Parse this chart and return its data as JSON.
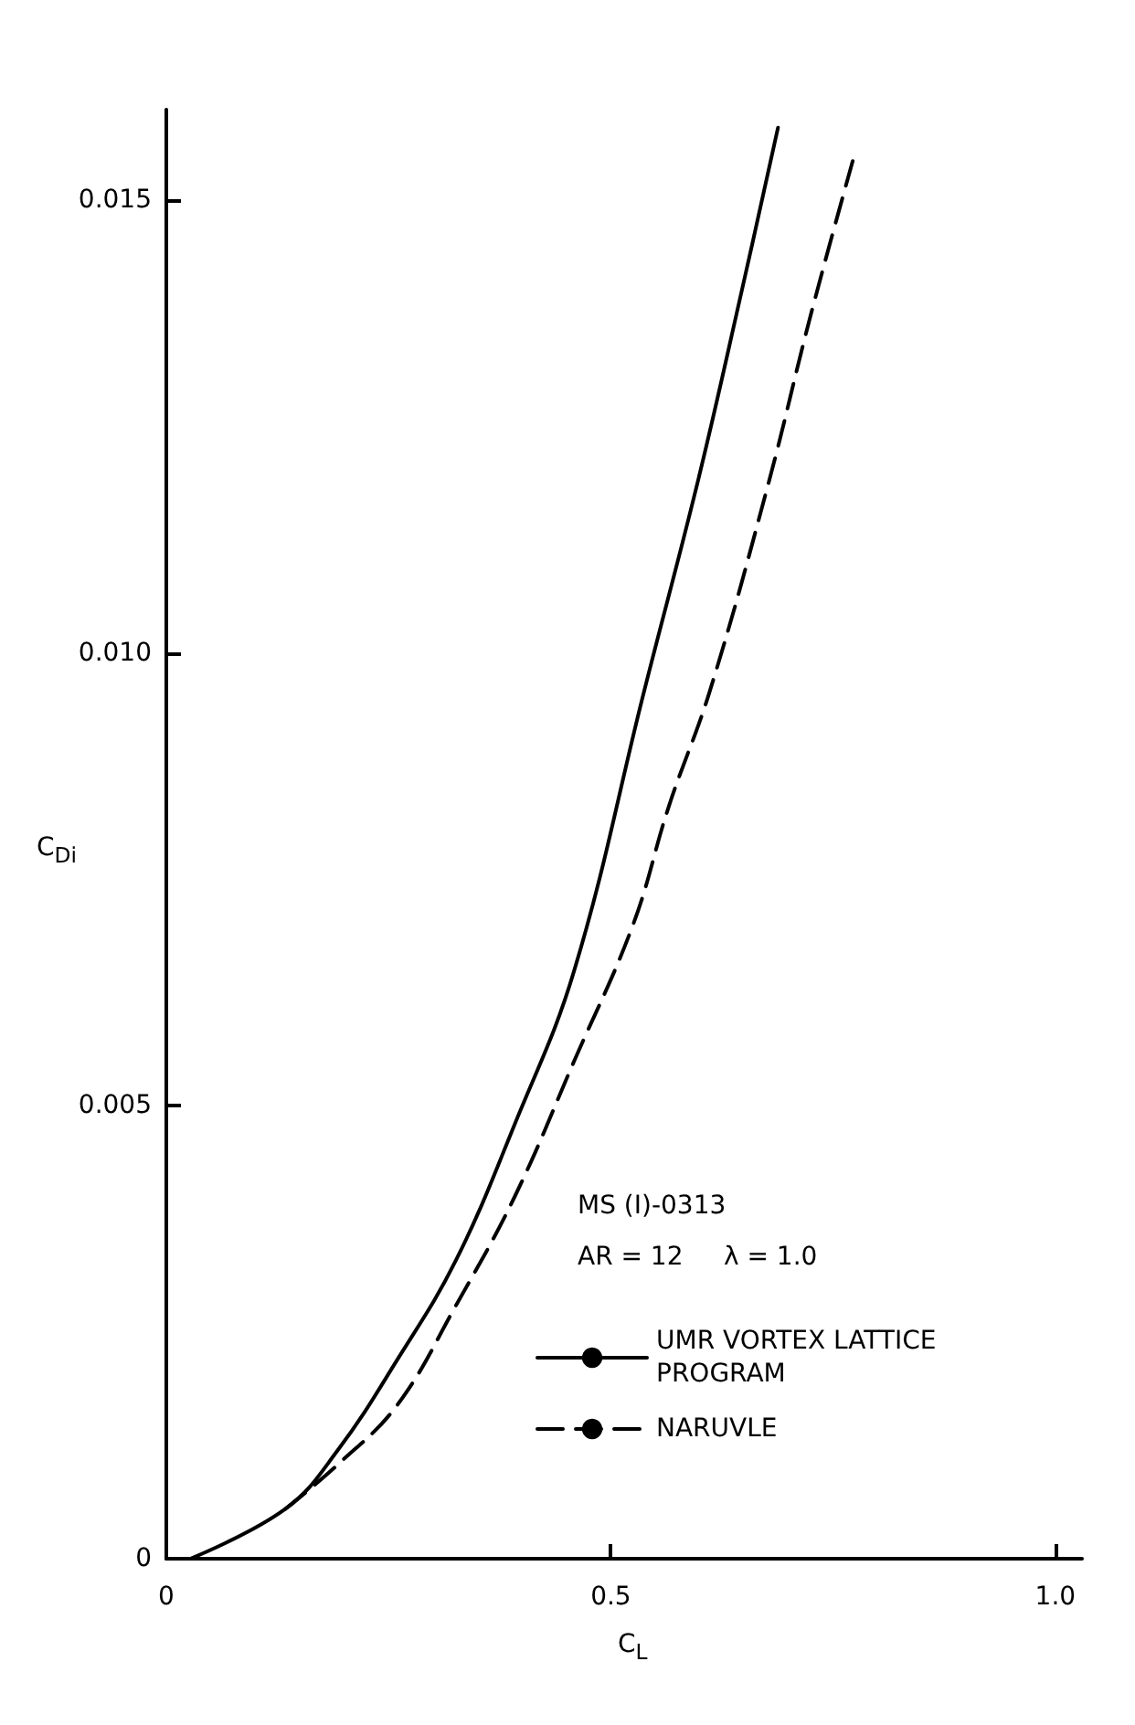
{
  "chart_data": {
    "type": "line",
    "xlabel": "C$_{L}$",
    "ylabel": "C$_{Di}$",
    "annotations": [
      "MS (I)-0313",
      "AR = 12     λ = 1.0"
    ],
    "series": [
      {
        "name": "UMR VORTEX LATTICE PROGRAM",
        "color": "#000000",
        "line_style": "solid",
        "x": [
          0.027,
          0.134,
          0.193,
          0.26,
          0.326,
          0.392,
          0.459,
          0.538,
          0.598,
          0.645,
          0.688
        ],
        "values": [
          0,
          0.00055,
          0.0012,
          0.0022,
          0.0033,
          0.0048,
          0.0065,
          0.0096,
          0.0119,
          0.0139,
          0.0158
        ]
      },
      {
        "name": "NARUVLE",
        "color": "#000000",
        "line_style": "dashed",
        "x": [
          0.134,
          0.193,
          0.26,
          0.326,
          0.392,
          0.459,
          0.525,
          0.565,
          0.612,
          0.678,
          0.724,
          0.774
        ],
        "values": [
          0.00055,
          0.00104,
          0.0017,
          0.0028,
          0.004,
          0.0055,
          0.007,
          0.0083,
          0.0096,
          0.0119,
          0.0137,
          0.0155
        ]
      }
    ],
    "xlim": [
      0,
      1.03
    ],
    "xticks": [
      0,
      0.5,
      {
        "value": 1.0,
        "label": "1.0"
      }
    ],
    "ylim": [
      0,
      0.016
    ],
    "yticks": [
      0,
      0.005,
      {
        "value": 0.01,
        "label": "0.010"
      },
      0.015
    ],
    "grid": false,
    "legend": "right",
    "marker": "none"
  }
}
